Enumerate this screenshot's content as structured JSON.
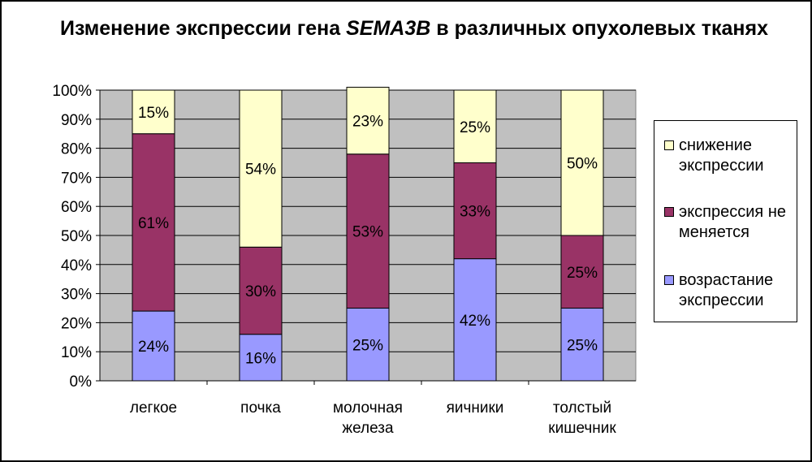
{
  "title": {
    "prefix": "Изменение экспрессии гена",
    "gene": "SEMA3B",
    "suffix": "в различных опухолевых тканях"
  },
  "chart_data": {
    "type": "bar",
    "stacked": true,
    "categories": [
      "легкое",
      "почка",
      "молочная железа",
      "яичники",
      "толстый кишечник"
    ],
    "series": [
      {
        "name": "возрастание экспрессии",
        "values": [
          24,
          16,
          25,
          42,
          25
        ],
        "color": "#9999FF"
      },
      {
        "name": "экспрессия не меняется",
        "values": [
          61,
          30,
          53,
          33,
          25
        ],
        "color": "#993366"
      },
      {
        "name": "снижение экспрессии",
        "values": [
          15,
          54,
          23,
          25,
          50
        ],
        "color": "#FFFFCC"
      }
    ],
    "ylim": [
      0,
      100
    ],
    "yticks": [
      "0%",
      "10%",
      "20%",
      "30%",
      "40%",
      "50%",
      "60%",
      "70%",
      "80%",
      "90%",
      "100%"
    ],
    "plot_background": "#C0C0C0",
    "grid": true,
    "legend_position": "right",
    "legend_order": [
      2,
      1,
      0
    ]
  }
}
